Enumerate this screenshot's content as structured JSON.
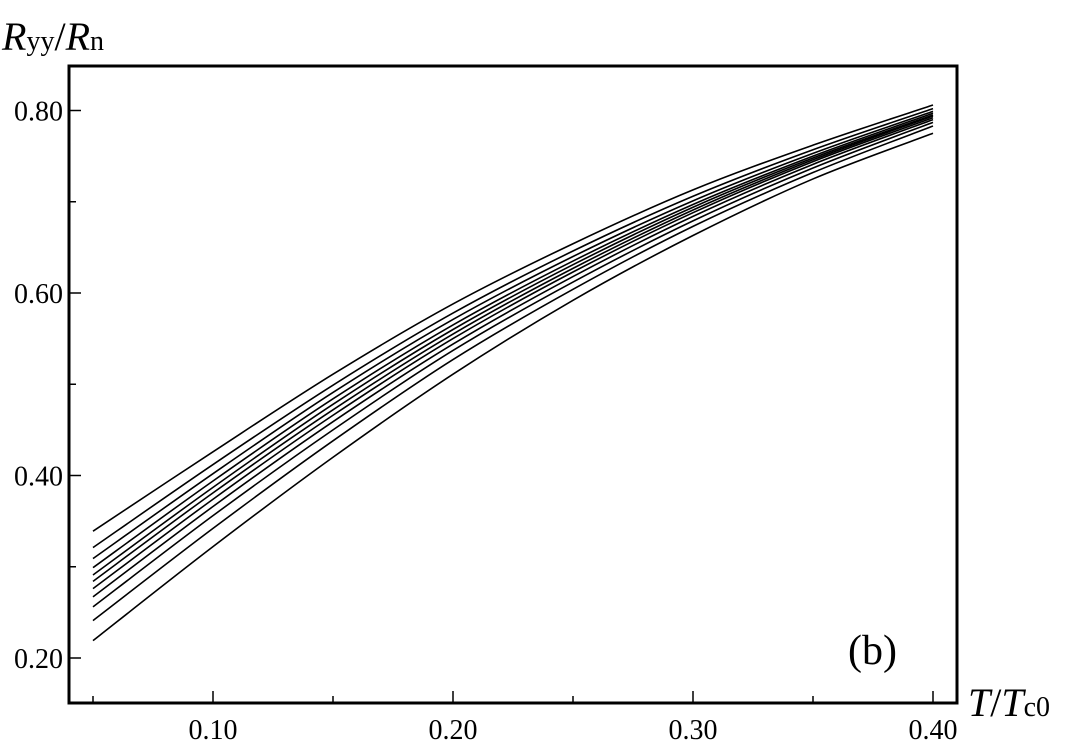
{
  "chart_data": {
    "type": "line",
    "title": "",
    "panel_label": "(b)",
    "ylabel": {
      "main": "R",
      "sub": "yy",
      "slash": "/",
      "main2": "R",
      "sub2": "n"
    },
    "xlabel": {
      "main": "T",
      "slash": "/",
      "main2": "T",
      "sub": "c0"
    },
    "xlim": [
      0.04,
      0.41
    ],
    "ylim": [
      0.18,
      0.85
    ],
    "x_ticks": [
      0.1,
      0.2,
      0.3,
      0.4
    ],
    "x_tick_labels": [
      "0.10",
      "0.20",
      "0.30",
      "0.40"
    ],
    "x_minor_ticks": [
      0.05,
      0.15,
      0.25,
      0.35
    ],
    "y_ticks": [
      0.2,
      0.4,
      0.6,
      0.8
    ],
    "y_tick_labels": [
      "0.20",
      "0.40",
      "0.60",
      "0.80"
    ],
    "y_minor_ticks": [
      0.3,
      0.5,
      0.7
    ],
    "grid": false,
    "line_color": "#000000",
    "x": [
      0.05,
      0.1,
      0.15,
      0.2,
      0.25,
      0.3,
      0.35,
      0.4
    ],
    "series": [
      {
        "values": [
          0.339,
          0.426,
          0.511,
          0.588,
          0.654,
          0.713,
          0.762,
          0.806
        ]
      },
      {
        "values": [
          0.321,
          0.412,
          0.499,
          0.578,
          0.646,
          0.706,
          0.757,
          0.802
        ]
      },
      {
        "values": [
          0.309,
          0.402,
          0.491,
          0.571,
          0.64,
          0.701,
          0.753,
          0.799
        ]
      },
      {
        "values": [
          0.299,
          0.394,
          0.484,
          0.565,
          0.635,
          0.697,
          0.75,
          0.797
        ]
      },
      {
        "values": [
          0.291,
          0.387,
          0.478,
          0.56,
          0.631,
          0.694,
          0.748,
          0.795
        ]
      },
      {
        "values": [
          0.284,
          0.381,
          0.472,
          0.555,
          0.627,
          0.691,
          0.746,
          0.794
        ]
      },
      {
        "values": [
          0.276,
          0.374,
          0.466,
          0.55,
          0.623,
          0.688,
          0.744,
          0.792
        ]
      },
      {
        "values": [
          0.267,
          0.366,
          0.459,
          0.544,
          0.618,
          0.684,
          0.741,
          0.79
        ]
      },
      {
        "values": [
          0.256,
          0.356,
          0.45,
          0.537,
          0.612,
          0.679,
          0.737,
          0.787
        ]
      },
      {
        "values": [
          0.241,
          0.342,
          0.438,
          0.527,
          0.604,
          0.673,
          0.732,
          0.783
        ]
      },
      {
        "values": [
          0.219,
          0.322,
          0.42,
          0.511,
          0.592,
          0.663,
          0.725,
          0.775
        ]
      }
    ]
  }
}
